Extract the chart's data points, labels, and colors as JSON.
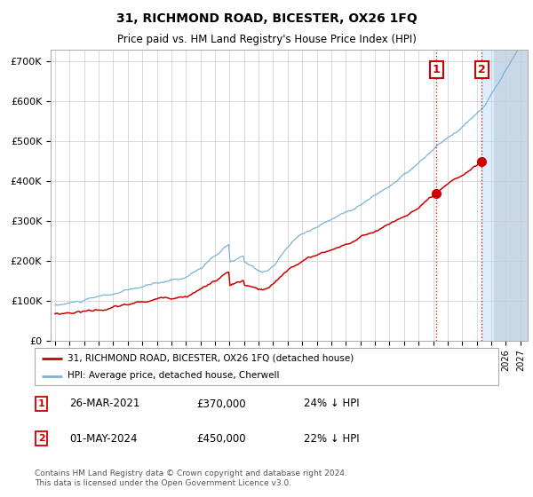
{
  "title": "31, RICHMOND ROAD, BICESTER, OX26 1FQ",
  "subtitle": "Price paid vs. HM Land Registry's House Price Index (HPI)",
  "yticks": [
    0,
    100000,
    200000,
    300000,
    400000,
    500000,
    600000,
    700000
  ],
  "ytick_labels": [
    "£0",
    "£100K",
    "£200K",
    "£300K",
    "£400K",
    "£500K",
    "£600K",
    "£700K"
  ],
  "hpi_color": "#7ab4d8",
  "price_color": "#cc0000",
  "vline_color": "#cc0000",
  "marker1_x": 2021.23,
  "marker1_y": 370000,
  "marker2_x": 2024.33,
  "marker2_y": 450000,
  "annotation1": [
    "1",
    "26-MAR-2021",
    "£370,000",
    "24% ↓ HPI"
  ],
  "annotation2": [
    "2",
    "01-MAY-2024",
    "£450,000",
    "22% ↓ HPI"
  ],
  "legend_line1": "31, RICHMOND ROAD, BICESTER, OX26 1FQ (detached house)",
  "legend_line2": "HPI: Average price, detached house, Cherwell",
  "footnote": "Contains HM Land Registry data © Crown copyright and database right 2024.\nThis data is licensed under the Open Government Licence v3.0.",
  "shaded_color": "#ddeeff",
  "grid_color": "#cccccc",
  "xlim_left": 1994.7,
  "xlim_right": 2027.5,
  "ylim_top": 730000
}
